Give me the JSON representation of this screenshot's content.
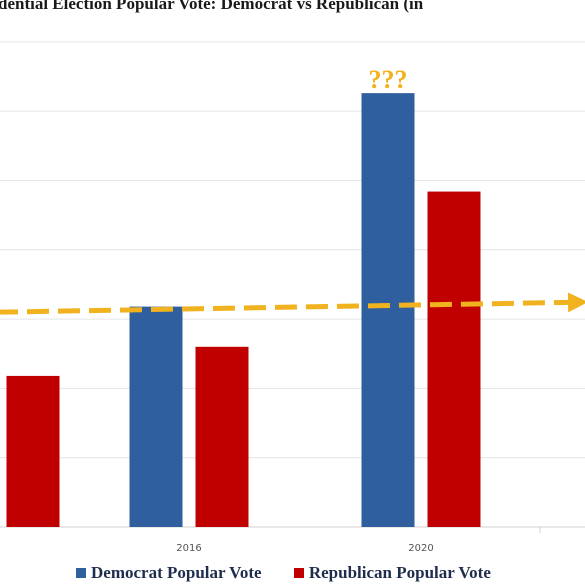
{
  "chart_data": {
    "type": "bar",
    "title": "dential Election Popular Vote: Democrat vs  Republican (in",
    "categories": [
      "",
      "2016",
      "2020"
    ],
    "series": [
      {
        "name": "Democrat Popular Vote",
        "color": "#2f5f9e",
        "values": [
          null,
          65.9,
          81.3
        ]
      },
      {
        "name": "Republican Popular Vote",
        "color": "#c00000",
        "values": [
          60.9,
          63.0,
          74.2
        ]
      }
    ],
    "reference_line": {
      "value": 66,
      "color": "#f0b21e",
      "style": "dashed"
    },
    "annotation": {
      "text": "???",
      "category": "2020",
      "series": "Democrat Popular Vote"
    },
    "ylim": [
      50,
      86
    ],
    "grid": true,
    "legend": "bottom"
  }
}
